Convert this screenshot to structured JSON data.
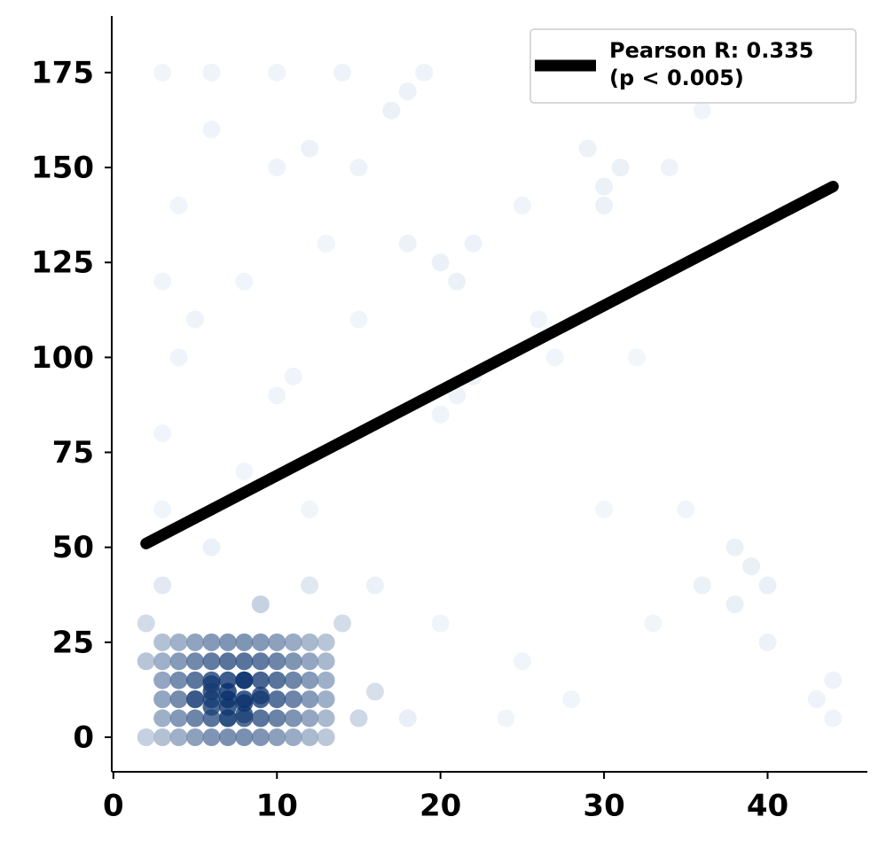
{
  "chart_data": {
    "type": "scatter",
    "xlim": [
      -0.1,
      46.1
    ],
    "ylim": [
      -9.1,
      189.9
    ],
    "xticks": [
      0,
      10,
      20,
      30,
      40
    ],
    "yticks": [
      0,
      25,
      50,
      75,
      100,
      125,
      150,
      175
    ],
    "legend": "upper right",
    "series": [
      {
        "color": "#08306b",
        "x": [
          3,
          4,
          5,
          6,
          7,
          8,
          9,
          10,
          11,
          12,
          13,
          3,
          4,
          5,
          6,
          7,
          8,
          9,
          10,
          11,
          12,
          13,
          3,
          4,
          5,
          6,
          7,
          8,
          9,
          10,
          11,
          12,
          13,
          3,
          4,
          5,
          6,
          7,
          8,
          9,
          10,
          11,
          12,
          13,
          3,
          4,
          5,
          6,
          7,
          8,
          9,
          10,
          11,
          12,
          13,
          3,
          4,
          5,
          6,
          7,
          8,
          9,
          10,
          11,
          12,
          13,
          6,
          7,
          8,
          7,
          6,
          8,
          5,
          9,
          7,
          8,
          6,
          3,
          3,
          3,
          4,
          3,
          4,
          3,
          6,
          10,
          14,
          18,
          19,
          17,
          12,
          10,
          15,
          20,
          21,
          22,
          30,
          31,
          30,
          29,
          21,
          22,
          20,
          10,
          11,
          8,
          6,
          12,
          16,
          20,
          25,
          28,
          24,
          18,
          16,
          38,
          40,
          39,
          40,
          38,
          43,
          44,
          44,
          35,
          36,
          33,
          30,
          27,
          25,
          26,
          32,
          34,
          36,
          15,
          18,
          13,
          8,
          6,
          5,
          2,
          2,
          2,
          14,
          15,
          12,
          9
        ],
        "values": [
          0,
          0,
          0,
          0,
          0,
          0,
          0,
          0,
          0,
          0,
          0,
          5,
          5,
          5,
          5,
          5,
          5,
          5,
          5,
          5,
          5,
          5,
          10,
          10,
          10,
          10,
          10,
          10,
          10,
          10,
          10,
          10,
          10,
          15,
          15,
          15,
          15,
          15,
          15,
          15,
          15,
          15,
          15,
          15,
          20,
          20,
          20,
          20,
          20,
          20,
          20,
          20,
          20,
          20,
          20,
          25,
          25,
          25,
          25,
          25,
          25,
          25,
          25,
          25,
          25,
          25,
          8,
          12,
          9,
          5,
          14,
          15,
          10,
          11,
          8,
          6,
          12,
          40,
          60,
          80,
          100,
          120,
          140,
          175,
          175,
          175,
          175,
          170,
          175,
          165,
          155,
          150,
          150,
          125,
          120,
          130,
          145,
          150,
          140,
          155,
          90,
          95,
          85,
          90,
          95,
          70,
          50,
          60,
          40,
          30,
          20,
          10,
          5,
          5,
          12,
          35,
          40,
          45,
          25,
          50,
          10,
          15,
          5,
          60,
          40,
          30,
          60,
          100,
          140,
          110,
          100,
          150,
          165,
          110,
          130,
          130,
          120,
          160,
          110,
          0,
          20,
          30,
          30,
          5,
          40,
          35
        ]
      },
      {
        "type": "line",
        "name": "Pearson R: 0.335\n(p < 0.005)",
        "color": "#000000",
        "x": [
          2,
          44
        ],
        "values": [
          51,
          145
        ]
      }
    ]
  }
}
